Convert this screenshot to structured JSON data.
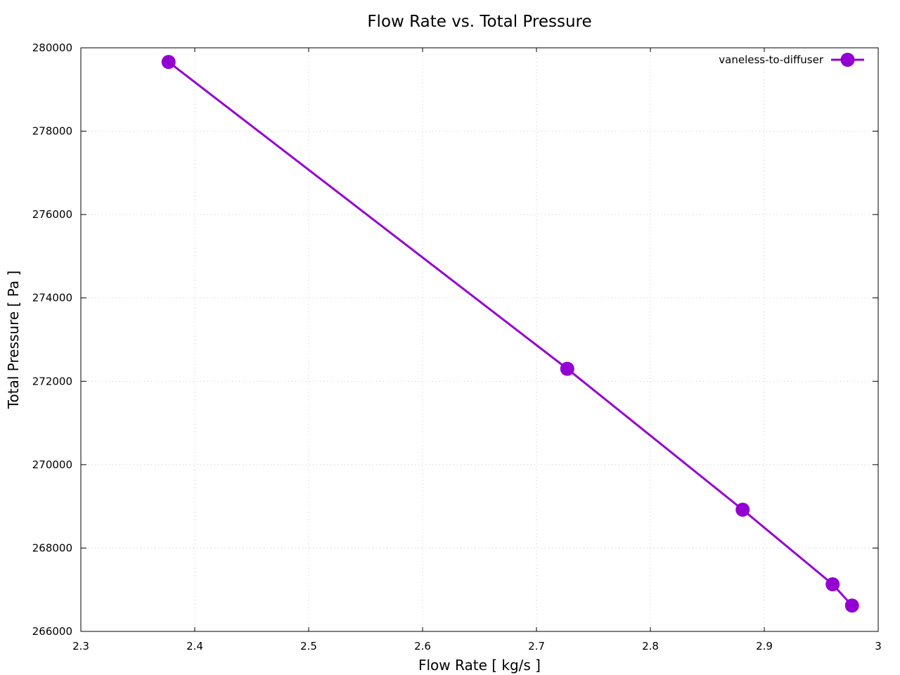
{
  "chart_data": {
    "type": "line",
    "title": "Flow Rate vs. Total Pressure",
    "xlabel": "Flow Rate [ kg/s ]",
    "ylabel": "Total Pressure [ Pa ]",
    "xlim": [
      2.3,
      3.0
    ],
    "ylim": [
      266000,
      280000
    ],
    "x_ticks": [
      "2.3",
      "2.4",
      "2.5",
      "2.6",
      "2.7",
      "2.8",
      "2.9",
      "3"
    ],
    "y_ticks": [
      "266000",
      "268000",
      "270000",
      "272000",
      "274000",
      "276000",
      "278000",
      "280000"
    ],
    "grid": true,
    "legend_position": "top-right",
    "series": [
      {
        "name": "vaneless-to-diffuser",
        "color": "#9400d3",
        "marker": "circle",
        "points": [
          {
            "x": 2.377,
            "y": 279660
          },
          {
            "x": 2.727,
            "y": 272300
          },
          {
            "x": 2.881,
            "y": 268920
          },
          {
            "x": 2.96,
            "y": 267130
          },
          {
            "x": 2.977,
            "y": 266620
          }
        ]
      }
    ]
  }
}
